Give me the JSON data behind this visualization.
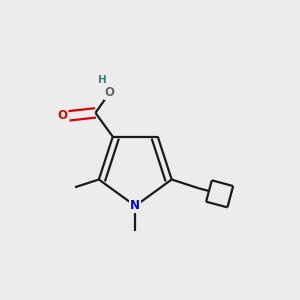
{
  "bg_color": "#ececec",
  "bond_color": "#1a1a1a",
  "N_color": "#0000ee",
  "O_color": "#dd0000",
  "H_color": "#3d7d7d",
  "line_width": 1.6,
  "dbo": 0.018,
  "figsize": [
    3.0,
    3.0
  ],
  "dpi": 100,
  "xlim": [
    0.0,
    1.0
  ],
  "ylim": [
    0.0,
    1.0
  ]
}
